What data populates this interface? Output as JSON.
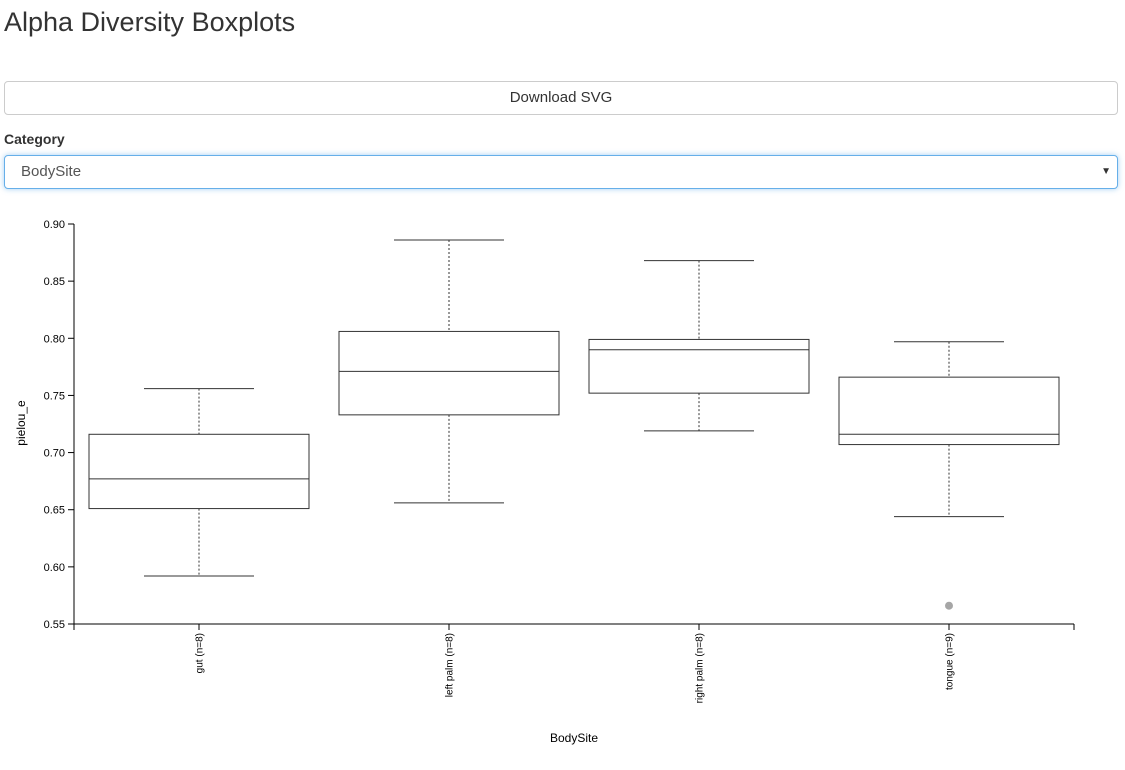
{
  "page": {
    "title": "Alpha Diversity Boxplots"
  },
  "controls": {
    "download_label": "Download SVG",
    "category_label": "Category",
    "category_value": "BodySite",
    "chevron_icon": "chevron-down-icon"
  },
  "chart_data": {
    "type": "boxplot",
    "title": "",
    "xlabel": "BodySite",
    "ylabel": "pielou_e",
    "ylim": [
      0.55,
      0.9
    ],
    "yticks": [
      0.55,
      0.6,
      0.65,
      0.7,
      0.75,
      0.8,
      0.85,
      0.9
    ],
    "ytick_labels": [
      "0.55",
      "0.60",
      "0.65",
      "0.70",
      "0.75",
      "0.80",
      "0.85",
      "0.90"
    ],
    "categories": [
      "gut (n=8)",
      "left palm (n=8)",
      "right palm (n=8)",
      "tongue (n=9)"
    ],
    "series": [
      {
        "name": "gut (n=8)",
        "whisker_low": 0.592,
        "q1": 0.651,
        "median": 0.677,
        "q3": 0.716,
        "whisker_high": 0.756,
        "outliers": []
      },
      {
        "name": "left palm (n=8)",
        "whisker_low": 0.656,
        "q1": 0.733,
        "median": 0.771,
        "q3": 0.806,
        "whisker_high": 0.886,
        "outliers": []
      },
      {
        "name": "right palm (n=8)",
        "whisker_low": 0.719,
        "q1": 0.752,
        "median": 0.79,
        "q3": 0.799,
        "whisker_high": 0.868,
        "outliers": []
      },
      {
        "name": "tongue (n=9)",
        "whisker_low": 0.644,
        "q1": 0.707,
        "median": 0.716,
        "q3": 0.766,
        "whisker_high": 0.797,
        "outliers": [
          0.566
        ]
      }
    ],
    "colors": {
      "box_stroke": "#333333",
      "outlier_fill": "#a6a6a6",
      "axis": "#000000"
    }
  }
}
